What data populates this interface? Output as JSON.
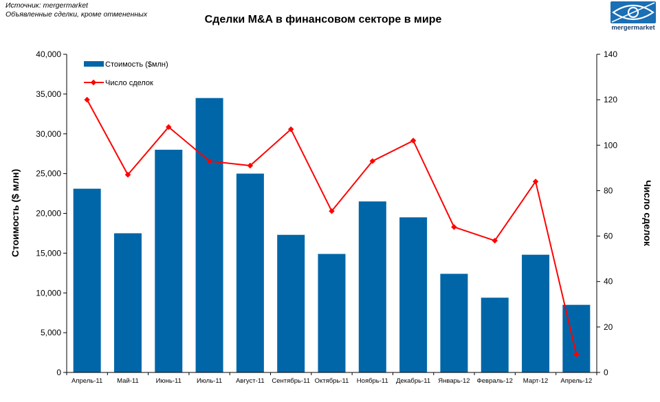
{
  "source": {
    "line1": "Источник: mergermarket",
    "line2": "Объявленные сделки, кроме отмененных"
  },
  "logo": {
    "text": "mergermarket",
    "icon": "eye-logo-icon",
    "color": "#1a6fb5"
  },
  "chart_data": {
    "type": "bar",
    "title": "Сделки M&A  в финансовом секторе в мире",
    "categories": [
      "Апрель-11",
      "Май-11",
      "Июнь-11",
      "Июль-11",
      "Август-11",
      "Сентябрь-11",
      "Октябрь-11",
      "Ноябрь-11",
      "Декабрь-11",
      "Январь-12",
      "Февраль-12",
      "Март-12",
      "Апрель-12"
    ],
    "ylabel": "Стоимость ($ млн)",
    "ylim": [
      0,
      40000
    ],
    "yticks": [
      "0",
      "5,000",
      "10,000",
      "15,000",
      "20,000",
      "25,000",
      "30,000",
      "35,000",
      "40,000"
    ],
    "y2label": "Число сделок",
    "y2lim": [
      0,
      140
    ],
    "y2ticks": [
      "0",
      "20",
      "40",
      "60",
      "80",
      "100",
      "120",
      "140"
    ],
    "legend_position": "top-left",
    "grid": false,
    "series": [
      {
        "name": "Стоимость ($млн)",
        "type": "bar",
        "axis": "left",
        "color": "#0066a8",
        "values": [
          23100,
          17500,
          28000,
          34500,
          25000,
          17300,
          14900,
          21500,
          19500,
          12400,
          9400,
          14800,
          8500
        ]
      },
      {
        "name": "Число сделок",
        "type": "line",
        "axis": "right",
        "color": "#ff0000",
        "values": [
          120,
          87,
          108,
          93,
          91,
          107,
          71,
          93,
          102,
          64,
          58,
          84,
          8
        ]
      }
    ]
  }
}
